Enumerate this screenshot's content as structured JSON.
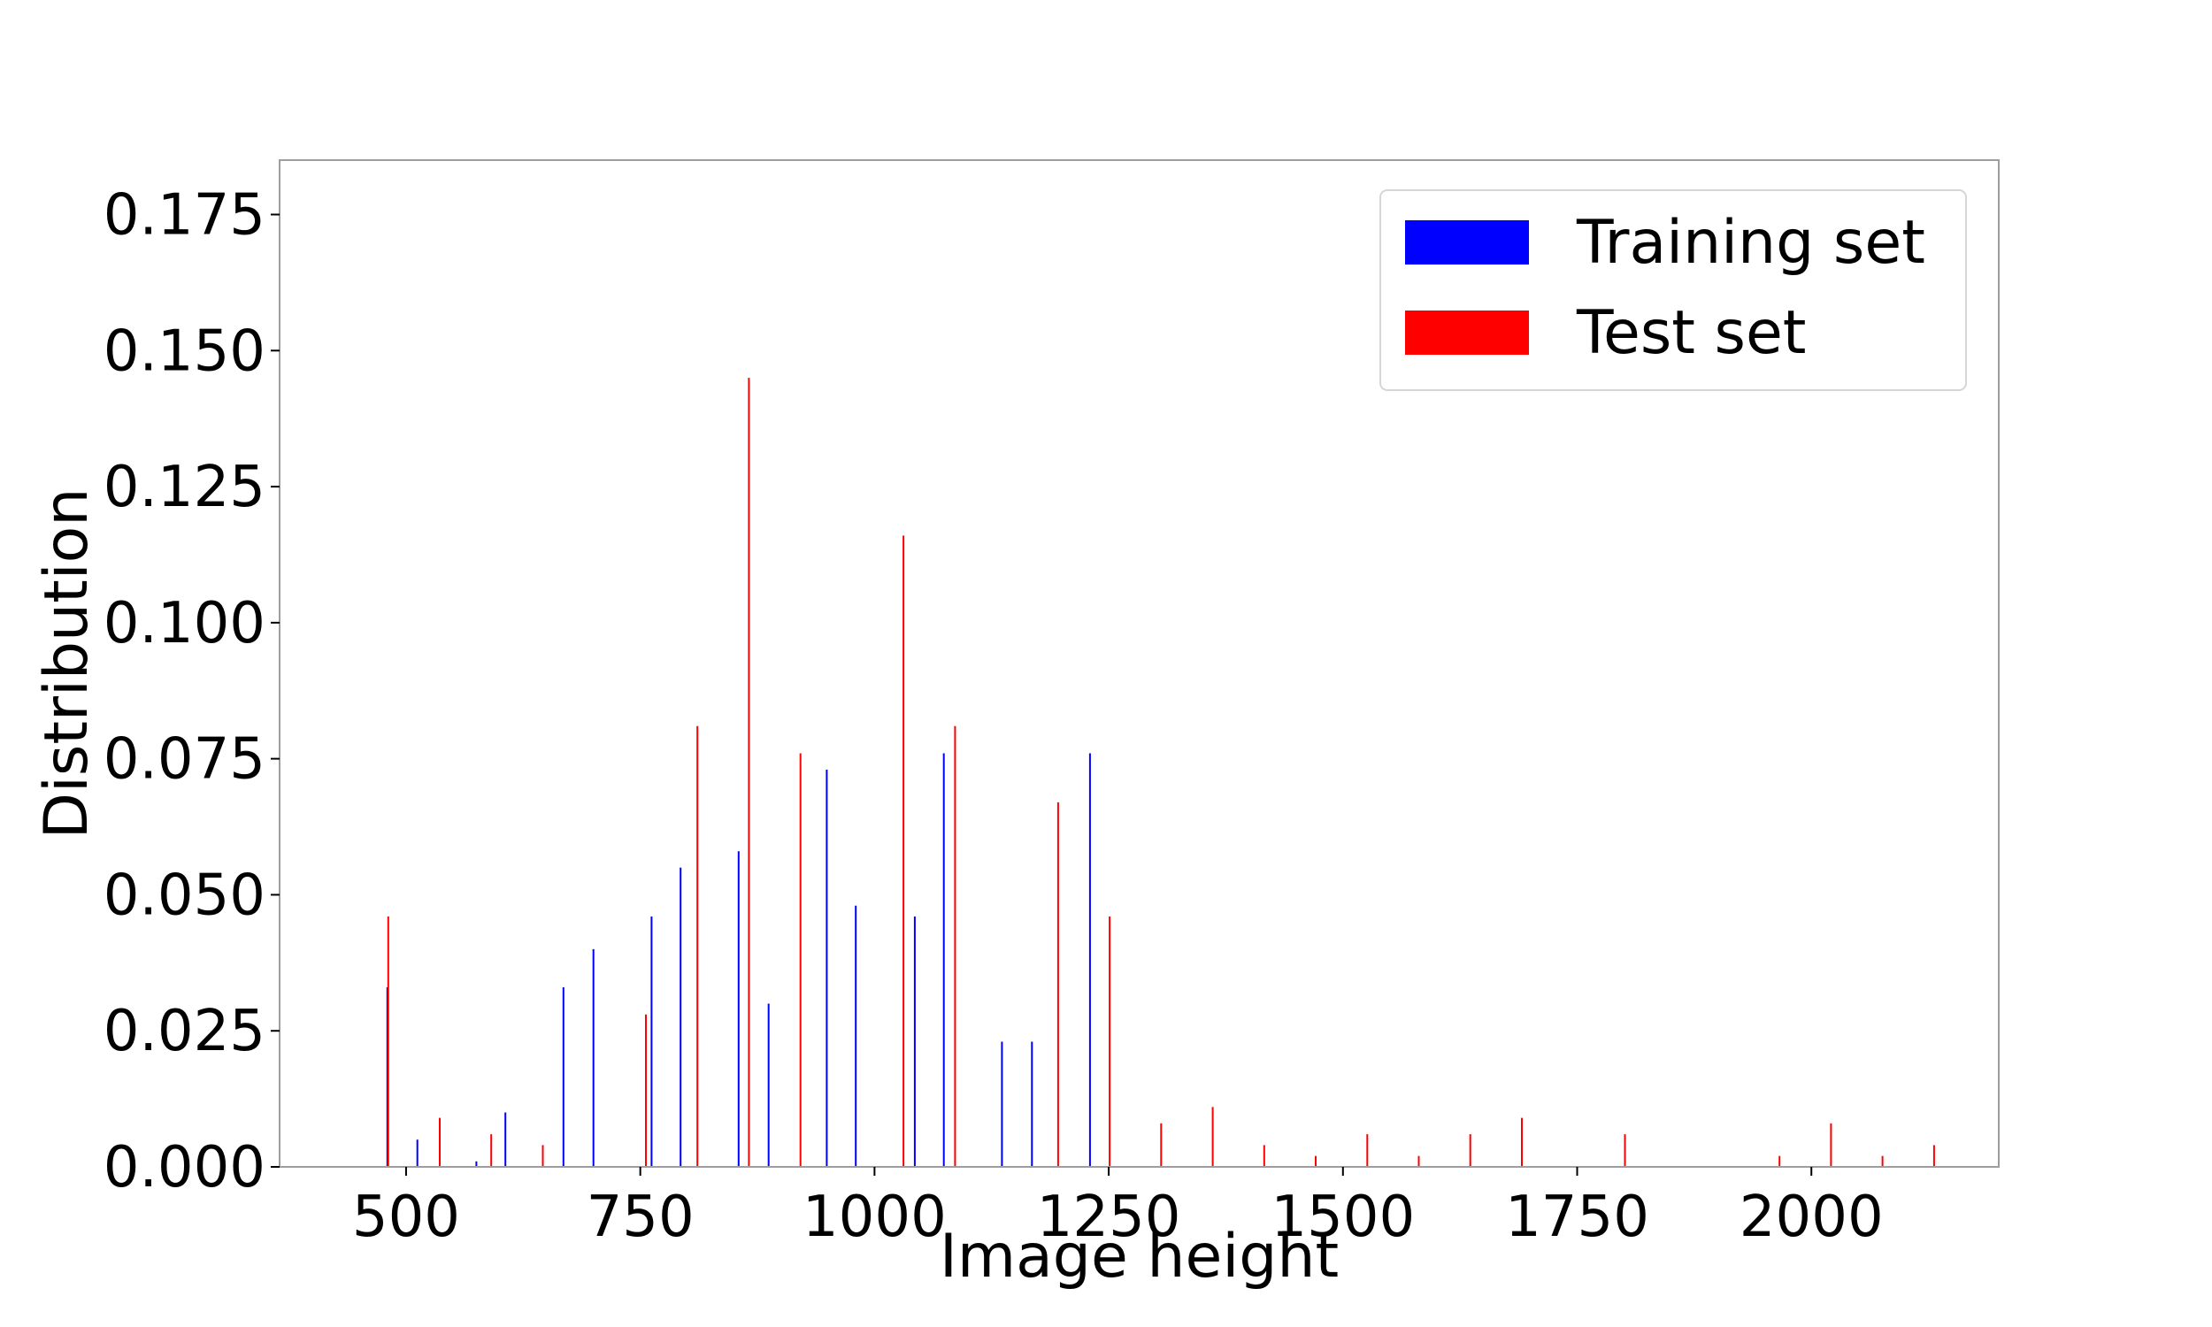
{
  "chart_data": {
    "type": "bar",
    "title": "",
    "xlabel": "Image height",
    "ylabel": "Distribution",
    "xlim": [
      365,
      2200
    ],
    "ylim": [
      0,
      0.185
    ],
    "x_ticks": [
      500,
      750,
      1000,
      1250,
      1500,
      1750,
      2000
    ],
    "x_tick_labels": [
      "500",
      "750",
      "1000",
      "1250",
      "1500",
      "1750",
      "2000"
    ],
    "y_ticks": [
      0.0,
      0.025,
      0.05,
      0.075,
      0.1,
      0.125,
      0.15,
      0.175
    ],
    "y_tick_labels": [
      "0.000",
      "0.025",
      "0.050",
      "0.075",
      "0.100",
      "0.125",
      "0.150",
      "0.175"
    ],
    "grid": false,
    "legend_position": "top-right",
    "series": [
      {
        "name": "Training set",
        "color": "#0000ff",
        "x": [
          480,
          512,
          575,
          606,
          668,
          700,
          762,
          793,
          855,
          887,
          949,
          980,
          1043,
          1074,
          1136,
          1168,
          1230
        ],
        "values": [
          0.033,
          0.005,
          0.001,
          0.01,
          0.033,
          0.04,
          0.046,
          0.055,
          0.058,
          0.03,
          0.073,
          0.048,
          0.046,
          0.076,
          0.023,
          0.023,
          0.076
        ]
      },
      {
        "name": "Test set",
        "color": "#ff0000",
        "x": [
          480,
          535,
          590,
          645,
          755,
          810,
          865,
          920,
          1030,
          1085,
          1195,
          1250,
          1305,
          1360,
          1415,
          1470,
          1525,
          1580,
          1635,
          1690,
          1800,
          1965,
          2020,
          2075,
          2130
        ],
        "values": [
          0.046,
          0.009,
          0.006,
          0.004,
          0.028,
          0.081,
          0.145,
          0.076,
          0.116,
          0.081,
          0.067,
          0.046,
          0.008,
          0.011,
          0.004,
          0.002,
          0.006,
          0.002,
          0.006,
          0.009,
          0.006,
          0.002,
          0.008,
          0.002,
          0.004
        ]
      }
    ]
  }
}
